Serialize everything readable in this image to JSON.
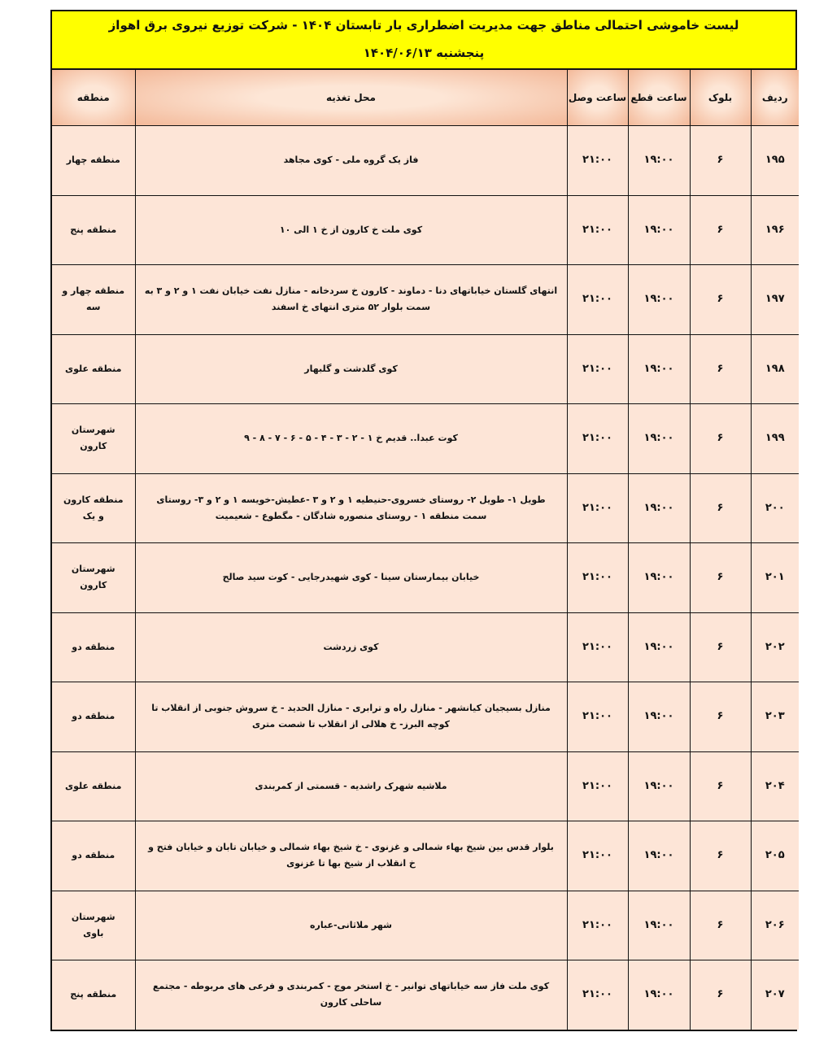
{
  "title": {
    "line1": "لیست خاموشی احتمالی مناطق جهت مدیریت اضطراری بار تابستان ۱۴۰۴ - شرکت توزیع نیروی برق اهواز",
    "line2": "پنجشنبه ۱۴۰۴/۰۶/۱۳"
  },
  "headers": {
    "row": "ردیف",
    "block": "بلوک",
    "cut": "ساعت قطع",
    "connect": "ساعت وصل",
    "location": "محل تغذیه",
    "region": "منطقه"
  },
  "rows": [
    {
      "row": "۱۹۵",
      "block": "۶",
      "cut": "۱۹:۰۰",
      "connect": "۲۱:۰۰",
      "location": "فاز یک گروه ملی - کوی مجاهد",
      "region": "منطقه چهار"
    },
    {
      "row": "۱۹۶",
      "block": "۶",
      "cut": "۱۹:۰۰",
      "connect": "۲۱:۰۰",
      "location": "کوی ملت خ کارون از خ ۱ الی ۱۰",
      "region": "منطقه پنج"
    },
    {
      "row": "۱۹۷",
      "block": "۶",
      "cut": "۱۹:۰۰",
      "connect": "۲۱:۰۰",
      "location": "انتهای گلستان خیاباتهای دنا - دماوند - کارون خ سردخانه - منازل نفت خیابان نفت ۱ و ۲ و ۳ به سمت بلوار ۵۲ متری انتهای خ اسفند",
      "region": "منطقه چهار و سه"
    },
    {
      "row": "۱۹۸",
      "block": "۶",
      "cut": "۱۹:۰۰",
      "connect": "۲۱:۰۰",
      "location": "کوی گلدشت و گلبهار",
      "region": "منطقه علوی"
    },
    {
      "row": "۱۹۹",
      "block": "۶",
      "cut": "۱۹:۰۰",
      "connect": "۲۱:۰۰",
      "location": "کوت عبدا.. قدیم خ ۱ - ۲ - ۳ - ۴ - ۵ - ۶ - ۷ - ۸ - ۹",
      "region": "شهرستان کارون"
    },
    {
      "row": "۲۰۰",
      "block": "۶",
      "cut": "۱۹:۰۰",
      "connect": "۲۱:۰۰",
      "location": "طویل ۱- طویل ۲- روستای خسروی-حنیطیه ۱ و ۲ و ۳ -عطیش-خویسه ۱ و ۲ و ۳- روستای سمت منطقه ۱ - روستای منصوره شادگان - مگطوع - شعیمیت",
      "region": "منطقه کارون و یک"
    },
    {
      "row": "۲۰۱",
      "block": "۶",
      "cut": "۱۹:۰۰",
      "connect": "۲۱:۰۰",
      "location": "خیابان بیمارستان سینا - کوی شهیدرجایی - کوت سید صالح",
      "region": "شهرستان کارون"
    },
    {
      "row": "۲۰۲",
      "block": "۶",
      "cut": "۱۹:۰۰",
      "connect": "۲۱:۰۰",
      "location": "کوی زردشت",
      "region": "منطقه دو"
    },
    {
      "row": "۲۰۳",
      "block": "۶",
      "cut": "۱۹:۰۰",
      "connect": "۲۱:۰۰",
      "location": "منازل بسیجیان کیانشهر - منازل راه و ترابری - منازل الحدید - خ سروش جنوبی از انقلاب تا کوچه البرز- خ هلالی از انقلاب تا شصت متری",
      "region": "منطقه دو"
    },
    {
      "row": "۲۰۴",
      "block": "۶",
      "cut": "۱۹:۰۰",
      "connect": "۲۱:۰۰",
      "location": "ملاشیه شهرک راشدیه - قسمتی از کمربندی",
      "region": "منطقه علوی"
    },
    {
      "row": "۲۰۵",
      "block": "۶",
      "cut": "۱۹:۰۰",
      "connect": "۲۱:۰۰",
      "location": "بلوار قدس بین شیخ بهاء شمالی و غزنوی - خ شیخ بهاء شمالی و خیابان تابان و خیابان فتح و خ انقلاب از شیخ بها تا غزنوی",
      "region": "منطقه دو"
    },
    {
      "row": "۲۰۶",
      "block": "۶",
      "cut": "۱۹:۰۰",
      "connect": "۲۱:۰۰",
      "location": "شهر ملاثانی-عباره",
      "region": "شهرستان باوی"
    },
    {
      "row": "۲۰۷",
      "block": "۶",
      "cut": "۱۹:۰۰",
      "connect": "۲۱:۰۰",
      "location": "کوی ملت فاز سه خیاباتهای توانیر - خ استخر موج - کمربندی و فرعی های مربوطه - مجتمع ساحلی کارون",
      "region": "منطقه پنج"
    }
  ]
}
